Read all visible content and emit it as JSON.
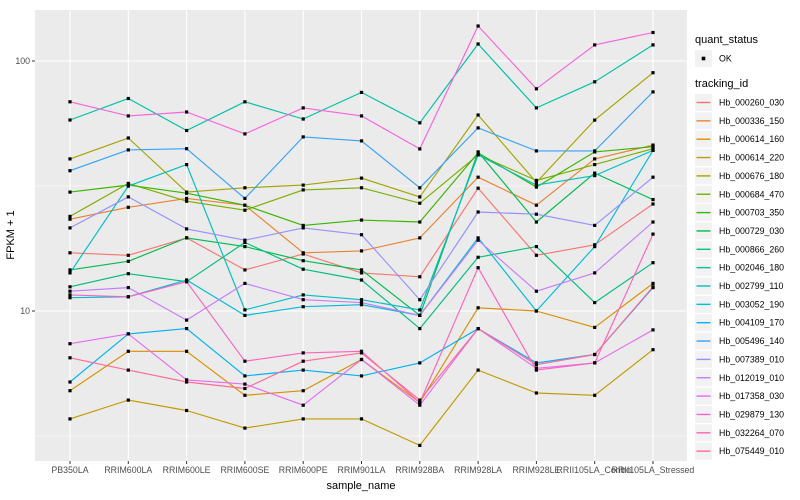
{
  "theme": {
    "panel_bg": "#EBEBEB",
    "grid_major": "#FFFFFF",
    "grid_minor": "#F5F5F5",
    "tick_color": "#333333",
    "tick_label_color": "#4D4D4D",
    "text_color": "#000000",
    "legend_key_bg": "#F2F2F2",
    "marker_color": "#000000"
  },
  "chart_data": {
    "type": "line",
    "title": "",
    "xlabel": "sample_name",
    "ylabel": "FPKM + 1",
    "y_scale": "log10",
    "y_ticks": [
      10,
      100
    ],
    "y_minor_ticks": [
      3.1623,
      31.6228,
      316.228
    ],
    "ylim": [
      2.5,
      160
    ],
    "grid": true,
    "legend_position": "right",
    "legend_titles": {
      "shape": "quant_status",
      "color": "tracking_id"
    },
    "quant_status_items": [
      {
        "label": "OK",
        "glyph": "point"
      }
    ],
    "categories": [
      "PB350LA",
      "RRIM600LA",
      "RRIM600LE",
      "RRIM600SE",
      "RRIM600PE",
      "RRIM901LA",
      "RRIM928BA",
      "RRIM928LA",
      "RRIM928LE",
      "RRII105LA_Control",
      "RRII105LA_Stressed"
    ],
    "series": [
      {
        "name": "Hb_000260_030",
        "color": "#F8766D",
        "values": [
          17.1,
          16.7,
          19.6,
          14.6,
          16.9,
          14.2,
          13.7,
          31.0,
          16.7,
          18.4,
          26.8
        ]
      },
      {
        "name": "Hb_000336_150",
        "color": "#EA8331",
        "values": [
          23.3,
          26.0,
          28.2,
          26.5,
          17.1,
          17.4,
          19.6,
          34.3,
          26.5,
          40.6,
          46.1
        ]
      },
      {
        "name": "Hb_000614_160",
        "color": "#D89000",
        "values": [
          4.8,
          6.9,
          6.9,
          4.6,
          4.8,
          6.4,
          4.3,
          10.3,
          10.0,
          8.6,
          12.9
        ]
      },
      {
        "name": "Hb_000614_220",
        "color": "#C09B00",
        "values": [
          3.7,
          4.4,
          4.0,
          3.4,
          3.7,
          3.7,
          2.9,
          5.8,
          4.7,
          4.6,
          7.0
        ]
      },
      {
        "name": "Hb_000676_180",
        "color": "#A3A500",
        "values": [
          40.6,
          49.2,
          29.9,
          31.1,
          31.9,
          34.0,
          28.6,
          60.8,
          32.7,
          58.0,
          89.8
        ]
      },
      {
        "name": "Hb_000684_470",
        "color": "#7CAE00",
        "values": [
          23.9,
          32.4,
          27.5,
          25.3,
          30.5,
          31.1,
          27.0,
          42.1,
          33.3,
          38.5,
          44.6
        ]
      },
      {
        "name": "Hb_000703_350",
        "color": "#39B600",
        "values": [
          29.9,
          31.9,
          29.6,
          26.5,
          22.0,
          23.1,
          22.7,
          42.9,
          31.3,
          43.3,
          45.4
        ]
      },
      {
        "name": "Hb_000729_030",
        "color": "#00BB4E",
        "values": [
          14.6,
          15.8,
          19.6,
          18.1,
          15.9,
          14.6,
          9.6,
          43.3,
          22.7,
          35.6,
          27.9
        ]
      },
      {
        "name": "Hb_000866_260",
        "color": "#00BF7D",
        "values": [
          12.5,
          14.1,
          13.1,
          18.8,
          14.7,
          13.3,
          8.5,
          16.4,
          18.1,
          10.8,
          15.6
        ]
      },
      {
        "name": "Hb_002046_180",
        "color": "#00C1A3",
        "values": [
          58.1,
          70.8,
          52.7,
          68.7,
          58.6,
          74.9,
          56.6,
          117.0,
          64.9,
          82.6,
          116.0
        ]
      },
      {
        "name": "Hb_002799_110",
        "color": "#00BFC4",
        "values": [
          14.2,
          31.6,
          38.5,
          10.1,
          11.6,
          11.1,
          10.1,
          42.1,
          31.9,
          34.8,
          43.9
        ]
      },
      {
        "name": "Hb_003052_190",
        "color": "#00BBDA",
        "values": [
          11.3,
          11.4,
          13.3,
          9.6,
          10.4,
          10.6,
          9.6,
          19.6,
          10.0,
          18.1,
          43.9
        ]
      },
      {
        "name": "Hb_004109_170",
        "color": "#00B0F6",
        "values": [
          5.2,
          8.1,
          8.5,
          5.5,
          5.8,
          5.5,
          6.2,
          8.5,
          6.2,
          6.7,
          12.4
        ]
      },
      {
        "name": "Hb_005496_140",
        "color": "#35A2FF",
        "values": [
          36.4,
          44.1,
          44.6,
          28.2,
          49.7,
          47.9,
          31.1,
          54.0,
          43.7,
          43.7,
          75.2
        ]
      },
      {
        "name": "Hb_007389_010",
        "color": "#9590FF",
        "values": [
          21.5,
          28.6,
          21.3,
          19.2,
          21.5,
          20.2,
          11.1,
          24.9,
          24.4,
          22.0,
          34.3
        ]
      },
      {
        "name": "Hb_012019_010",
        "color": "#C77CFF",
        "values": [
          12.0,
          12.4,
          9.2,
          12.9,
          11.1,
          10.8,
          9.6,
          19.2,
          12.0,
          14.2,
          22.7
        ]
      },
      {
        "name": "Hb_017358_030",
        "color": "#E76BF3",
        "values": [
          7.4,
          8.1,
          5.3,
          5.1,
          4.2,
          6.4,
          4.2,
          8.5,
          5.9,
          6.2,
          8.4
        ]
      },
      {
        "name": "Hb_029879_130",
        "color": "#FA62DB",
        "values": [
          68.7,
          60.3,
          62.5,
          51.1,
          64.9,
          60.3,
          44.5,
          138.0,
          77.4,
          116.0,
          130.0
        ]
      },
      {
        "name": "Hb_032264_070",
        "color": "#FF62BC",
        "values": [
          11.6,
          11.4,
          13.1,
          6.3,
          6.8,
          6.9,
          4.3,
          14.9,
          5.8,
          6.2,
          20.3
        ]
      },
      {
        "name": "Hb_075449_010",
        "color": "#FF6A98",
        "values": [
          6.5,
          5.8,
          5.2,
          4.9,
          6.3,
          6.8,
          4.4,
          8.5,
          6.1,
          6.7,
          12.5
        ]
      }
    ]
  }
}
